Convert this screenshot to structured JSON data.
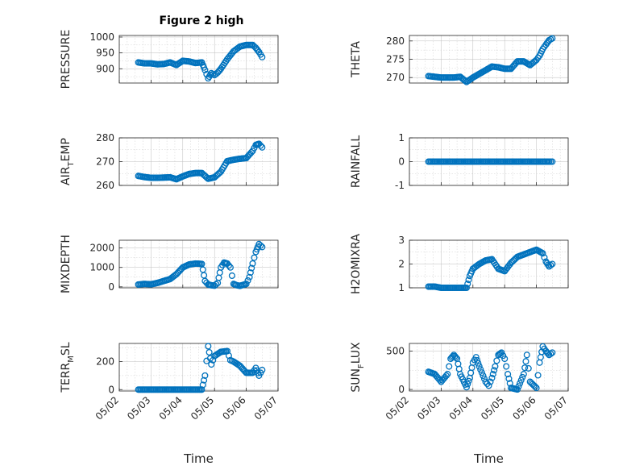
{
  "chart_data": [
    {
      "type": "scatter",
      "title": "Figure 2 high",
      "ylabel": "PRESSURE",
      "yticks": [
        900,
        950,
        1000
      ],
      "ylim": [
        855,
        1005
      ],
      "x": [
        2.6,
        2.8,
        3.0,
        3.2,
        3.4,
        3.6,
        3.8,
        4.0,
        4.2,
        4.4,
        4.6,
        4.7,
        4.8,
        4.9,
        5.0,
        5.1,
        5.2,
        5.4,
        5.6,
        5.8,
        6.0,
        6.2,
        6.3,
        6.4,
        6.5
      ],
      "y": [
        920,
        917,
        917,
        914,
        915,
        920,
        912,
        925,
        923,
        918,
        920,
        896,
        870,
        886,
        880,
        888,
        900,
        930,
        955,
        970,
        975,
        975,
        966,
        953,
        937
      ]
    },
    {
      "type": "scatter",
      "ylabel": "THETA",
      "yticks": [
        270,
        275,
        280
      ],
      "ylim": [
        268.5,
        281.5
      ],
      "x": [
        2.6,
        2.8,
        3.0,
        3.2,
        3.4,
        3.6,
        3.8,
        4.0,
        4.2,
        4.4,
        4.6,
        4.8,
        5.0,
        5.2,
        5.4,
        5.6,
        5.8,
        6.0,
        6.1,
        6.2,
        6.3,
        6.4,
        6.5
      ],
      "y": [
        270.4,
        270.2,
        270.0,
        270.0,
        270.0,
        270.2,
        268.8,
        270.0,
        271.0,
        272.0,
        273.0,
        272.8,
        272.4,
        272.4,
        274.4,
        274.4,
        273.4,
        274.8,
        276.0,
        277.8,
        279.0,
        280.2,
        280.7
      ]
    },
    {
      "type": "scatter",
      "ylabel": "AIR_TEMP",
      "yticks": [
        260,
        270,
        280
      ],
      "ylim": [
        260,
        280
      ],
      "x": [
        2.6,
        2.8,
        3.0,
        3.2,
        3.4,
        3.6,
        3.8,
        4.0,
        4.2,
        4.4,
        4.6,
        4.8,
        5.0,
        5.2,
        5.4,
        5.6,
        5.8,
        6.0,
        6.2,
        6.3,
        6.4,
        6.5
      ],
      "y": [
        264,
        263.5,
        263.2,
        263.2,
        263.3,
        263.4,
        262.6,
        263.8,
        264.8,
        265.2,
        265.2,
        262.8,
        263.4,
        265.8,
        270.2,
        270.8,
        271.2,
        271.5,
        274.5,
        277.0,
        277.5,
        276.0
      ]
    },
    {
      "type": "scatter",
      "ylabel": "RAINFALL",
      "yticks": [
        -1,
        0,
        1
      ],
      "ylim": [
        -1,
        1
      ],
      "x": [
        2.6,
        2.8,
        3.0,
        3.2,
        3.4,
        3.6,
        3.8,
        4.0,
        4.2,
        4.4,
        4.6,
        4.8,
        5.0,
        5.2,
        5.4,
        5.6,
        5.8,
        6.0,
        6.2,
        6.4,
        6.5
      ],
      "y": [
        0,
        0,
        0,
        0,
        0,
        0,
        0,
        0,
        0,
        0,
        0,
        0,
        0,
        0,
        0,
        0,
        0,
        0,
        0,
        0,
        0
      ]
    },
    {
      "type": "scatter",
      "ylabel": "MIXDEPTH",
      "yticks": [
        0,
        1000,
        2000
      ],
      "ylim": [
        -50,
        2400
      ],
      "x": [
        2.6,
        2.8,
        3.0,
        3.2,
        3.4,
        3.6,
        3.8,
        4.0,
        4.2,
        4.4,
        4.6,
        4.7,
        4.8,
        4.9,
        5.0,
        5.1,
        5.2,
        5.3,
        5.4,
        5.5,
        5.6,
        5.7,
        5.8,
        6.0,
        6.1,
        6.2,
        6.3,
        6.4,
        6.5
      ],
      "y": [
        120,
        150,
        130,
        200,
        300,
        400,
        650,
        1000,
        1150,
        1200,
        1180,
        300,
        120,
        80,
        60,
        200,
        1000,
        1250,
        1200,
        1000,
        150,
        80,
        50,
        150,
        500,
        1200,
        1800,
        2200,
        2050
      ]
    },
    {
      "type": "scatter",
      "ylabel": "H2OMIXRA",
      "yticks": [
        1,
        2,
        3
      ],
      "ylim": [
        1,
        3
      ],
      "x": [
        2.6,
        2.8,
        3.0,
        3.2,
        3.4,
        3.6,
        3.8,
        3.9,
        4.0,
        4.2,
        4.4,
        4.6,
        4.8,
        5.0,
        5.2,
        5.4,
        5.6,
        5.8,
        6.0,
        6.2,
        6.3,
        6.4,
        6.5
      ],
      "y": [
        1.05,
        1.05,
        1.0,
        1.0,
        1.0,
        1.0,
        1.0,
        1.5,
        1.8,
        2.0,
        2.15,
        2.2,
        1.8,
        1.7,
        2.05,
        2.3,
        2.4,
        2.5,
        2.6,
        2.45,
        2.1,
        1.9,
        2.0
      ]
    },
    {
      "type": "scatter",
      "ylabel": "TERR_MSL",
      "yticks": [
        0,
        200
      ],
      "ylim": [
        -10,
        330
      ],
      "x": [
        2.6,
        2.8,
        3.0,
        3.2,
        3.4,
        3.6,
        3.8,
        4.0,
        4.2,
        4.4,
        4.6,
        4.7,
        4.8,
        4.9,
        5.0,
        5.2,
        5.4,
        5.5,
        5.6,
        5.8,
        6.0,
        6.2,
        6.3,
        6.4,
        6.5
      ],
      "y": [
        0,
        0,
        0,
        0,
        0,
        0,
        0,
        0,
        0,
        0,
        0,
        100,
        310,
        180,
        240,
        270,
        275,
        210,
        200,
        170,
        120,
        120,
        155,
        100,
        140
      ]
    },
    {
      "type": "scatter",
      "ylabel": "SUN_FLUX",
      "yticks": [
        0,
        500
      ],
      "ylim": [
        -20,
        600
      ],
      "x": [
        2.6,
        2.8,
        3.0,
        3.2,
        3.3,
        3.4,
        3.5,
        3.6,
        3.8,
        3.9,
        4.0,
        4.1,
        4.2,
        4.4,
        4.5,
        4.6,
        4.7,
        4.8,
        4.9,
        5.0,
        5.1,
        5.2,
        5.4,
        5.6,
        5.7,
        5.8,
        6.0,
        6.1,
        6.2,
        6.3,
        6.4,
        6.5
      ],
      "y": [
        230,
        200,
        100,
        200,
        400,
        450,
        400,
        200,
        30,
        150,
        350,
        420,
        300,
        100,
        50,
        150,
        300,
        450,
        480,
        400,
        200,
        20,
        0,
        200,
        450,
        100,
        20,
        350,
        560,
        500,
        450,
        480
      ]
    }
  ],
  "xaxis": {
    "label": "Time",
    "xlim": [
      2,
      7
    ],
    "ticks": [
      "05/02",
      "05/03",
      "05/04",
      "05/05",
      "05/06",
      "05/07"
    ]
  }
}
